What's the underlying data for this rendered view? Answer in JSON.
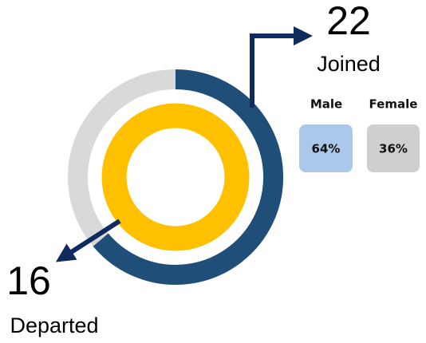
{
  "joined": {
    "value": "22",
    "label": "Joined"
  },
  "departed": {
    "value": "16",
    "label": "Departed"
  },
  "gender": {
    "male": {
      "label": "Male",
      "value": "64%"
    },
    "female": {
      "label": "Female",
      "value": "36%"
    }
  }
}
